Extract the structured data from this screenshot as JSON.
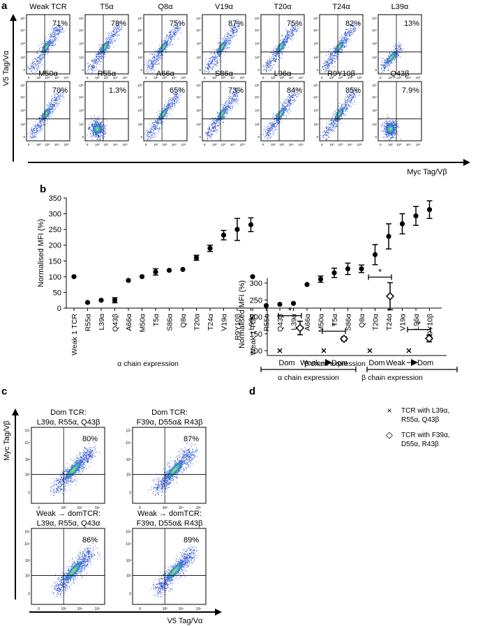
{
  "panel_a": {
    "letter": "a",
    "y_label": "V5 Tag/Vα",
    "x_label": "Myc Tag/Vβ",
    "tick_labels_x": [
      "0",
      "10²",
      "10³",
      "10⁴",
      "10⁵"
    ],
    "tick_labels_y": [
      "0",
      "10²",
      "10³",
      "10⁴",
      "10⁵"
    ],
    "plots": [
      {
        "title": "Weak TCR",
        "percent": "71%"
      },
      {
        "title": "T5α",
        "percent": "78%"
      },
      {
        "title": "Q8α",
        "percent": "75%"
      },
      {
        "title": "V19α",
        "percent": "87%"
      },
      {
        "title": "T20α",
        "percent": "75%"
      },
      {
        "title": "T24α",
        "percent": "82%"
      },
      {
        "title": "L39α",
        "percent": "13%"
      },
      {
        "title": "M50α",
        "percent": "70%"
      },
      {
        "title": "R55α",
        "percent": "1.3%"
      },
      {
        "title": "A66α",
        "percent": "65%"
      },
      {
        "title": "S86α",
        "percent": "73%"
      },
      {
        "title": "L96α",
        "percent": "84%"
      },
      {
        "title": "R9Y10β",
        "percent": "85%"
      },
      {
        "title": "Q43β",
        "percent": "7.9%"
      }
    ]
  },
  "panel_b": {
    "letter": "b",
    "group_labels": [
      "α chain expression",
      "β chain expression"
    ]
  },
  "panel_c": {
    "letter": "c",
    "y_label": "Myc Tag/Vβ",
    "x_label": "V5 Tag/Vα",
    "tick_labels_x": [
      "0",
      "10³",
      "10⁴",
      "10⁵"
    ],
    "tick_labels_y": [
      "0",
      "10²",
      "10³",
      "10⁴",
      "10⁵"
    ],
    "plots": [
      {
        "title_line1": "Dom TCR:",
        "title_line2": "L39α, R55α, Q43β",
        "percent": "80%"
      },
      {
        "title_line1": "Dom TCR:",
        "title_line2": "F39α, D55α& R43β",
        "percent": "87%"
      },
      {
        "title_line1": "Weak → domTCR:",
        "title_line2": "L39α, R55α, Q43α",
        "percent": "86%"
      },
      {
        "title_line1": "Weak → domTCR:",
        "title_line2": "F39α, D55α& R43β",
        "percent": "89%"
      }
    ]
  },
  "panel_d": {
    "letter": "d",
    "legend": [
      {
        "marker": "×",
        "line1": "TCR with L39α,",
        "line2": "R55α, Q43β"
      },
      {
        "marker": "◇",
        "line1": "TCR with F39α,",
        "line2": "D55α, R43β"
      }
    ],
    "group_labels": [
      "α chain expression",
      "β chain expression"
    ],
    "significance": "*"
  },
  "chart_data": [
    {
      "type": "scatter",
      "title": "",
      "ylabel": "Normalised MFI (%)",
      "xlabel": "",
      "ylim": [
        0,
        350
      ],
      "yticks": [
        0,
        50,
        100,
        150,
        200,
        250,
        300,
        350
      ],
      "groups": [
        {
          "name": "α chain expression",
          "categories": [
            "Weak 1 TCR",
            "R55α",
            "L39α",
            "Q43β",
            "A66α",
            "M50α",
            "T5α",
            "S86α",
            "Q8α",
            "T20α",
            "T24α",
            "V19α",
            "R9Y10β",
            "L96α"
          ],
          "values": [
            100,
            18,
            25,
            25,
            88,
            100,
            115,
            120,
            123,
            160,
            190,
            232,
            250,
            265
          ],
          "errors": [
            0,
            0,
            0,
            8,
            0,
            0,
            10,
            0,
            0,
            8,
            10,
            15,
            35,
            22
          ]
        },
        {
          "name": "β chain expression",
          "categories": [
            "Weak 1 TCR",
            "R55α",
            "Q43β",
            "L39α",
            "A66α",
            "M50α",
            "T5α",
            "S86α",
            "Q8α",
            "T20α",
            "T24α",
            "V19α",
            "L96α",
            "R9Y10β"
          ],
          "values": [
            100,
            8,
            12,
            15,
            75,
            92,
            112,
            125,
            125,
            170,
            228,
            268,
            293,
            313
          ],
          "errors": [
            0,
            0,
            0,
            0,
            0,
            10,
            15,
            18,
            12,
            32,
            40,
            32,
            30,
            28
          ]
        }
      ]
    },
    {
      "type": "scatter",
      "title": "",
      "ylabel": "Normalised MFI (%)",
      "xlabel": "",
      "ylim": [
        90,
        320
      ],
      "yticks": [
        100,
        150,
        200,
        250,
        300
      ],
      "categories": [
        "Dom",
        "Weak→Dom",
        "Dom",
        "Weak→Dom"
      ],
      "series": [
        {
          "name": "TCR with L39α, R55α, Q43β",
          "marker": "x",
          "values": [
            100,
            100,
            100,
            100
          ],
          "errors": [
            0,
            0,
            0,
            0
          ]
        },
        {
          "name": "TCR with F39α, D55α, R43β",
          "marker": "diamond",
          "values": [
            167,
            135,
            261,
            136
          ],
          "errors": [
            20,
            6,
            40,
            10
          ]
        }
      ]
    }
  ]
}
